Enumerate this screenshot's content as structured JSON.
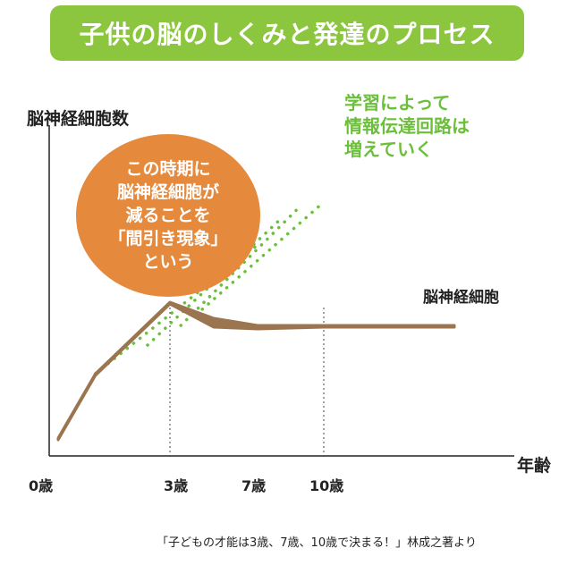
{
  "banner": {
    "title": "子供の脳のしくみと発達のプロセス"
  },
  "chart_data": {
    "type": "line",
    "ylabel": "脳神経細胞数",
    "xlabel": "年齢",
    "x_ticks": [
      "0歳",
      "3歳",
      "7歳",
      "10歳"
    ],
    "series": [
      {
        "name": "脳神経細胞",
        "style": "solid",
        "color": "#9a7550",
        "points": [
          [
            0,
            0.1
          ],
          [
            1,
            0.46
          ],
          [
            3,
            0.86
          ],
          [
            5,
            0.77
          ],
          [
            7,
            0.73
          ],
          [
            10,
            0.73
          ],
          [
            13,
            0.73
          ]
        ]
      }
    ],
    "circuit_lines": {
      "style": "dotted",
      "color": "#6bbf3a",
      "lines": [
        [
          [
            1,
            0.46
          ],
          [
            7,
            1.18
          ]
        ],
        [
          [
            2.4,
            0.62
          ],
          [
            8,
            1.32
          ]
        ],
        [
          [
            3.5,
            0.73
          ],
          [
            8.8,
            1.38
          ]
        ],
        [
          [
            4.2,
            0.79
          ],
          [
            10,
            1.42
          ]
        ]
      ]
    },
    "annotations": {
      "callout": [
        "この時期に",
        "脳神経細胞が",
        "減ることを",
        "「間引き現象」",
        "という"
      ],
      "growth_note": [
        "学習によって",
        "情報伝達回路は",
        "増えていく"
      ]
    }
  },
  "source": "「子どもの才能は3歳、7歳、10歳で決まる！」林成之著より"
}
